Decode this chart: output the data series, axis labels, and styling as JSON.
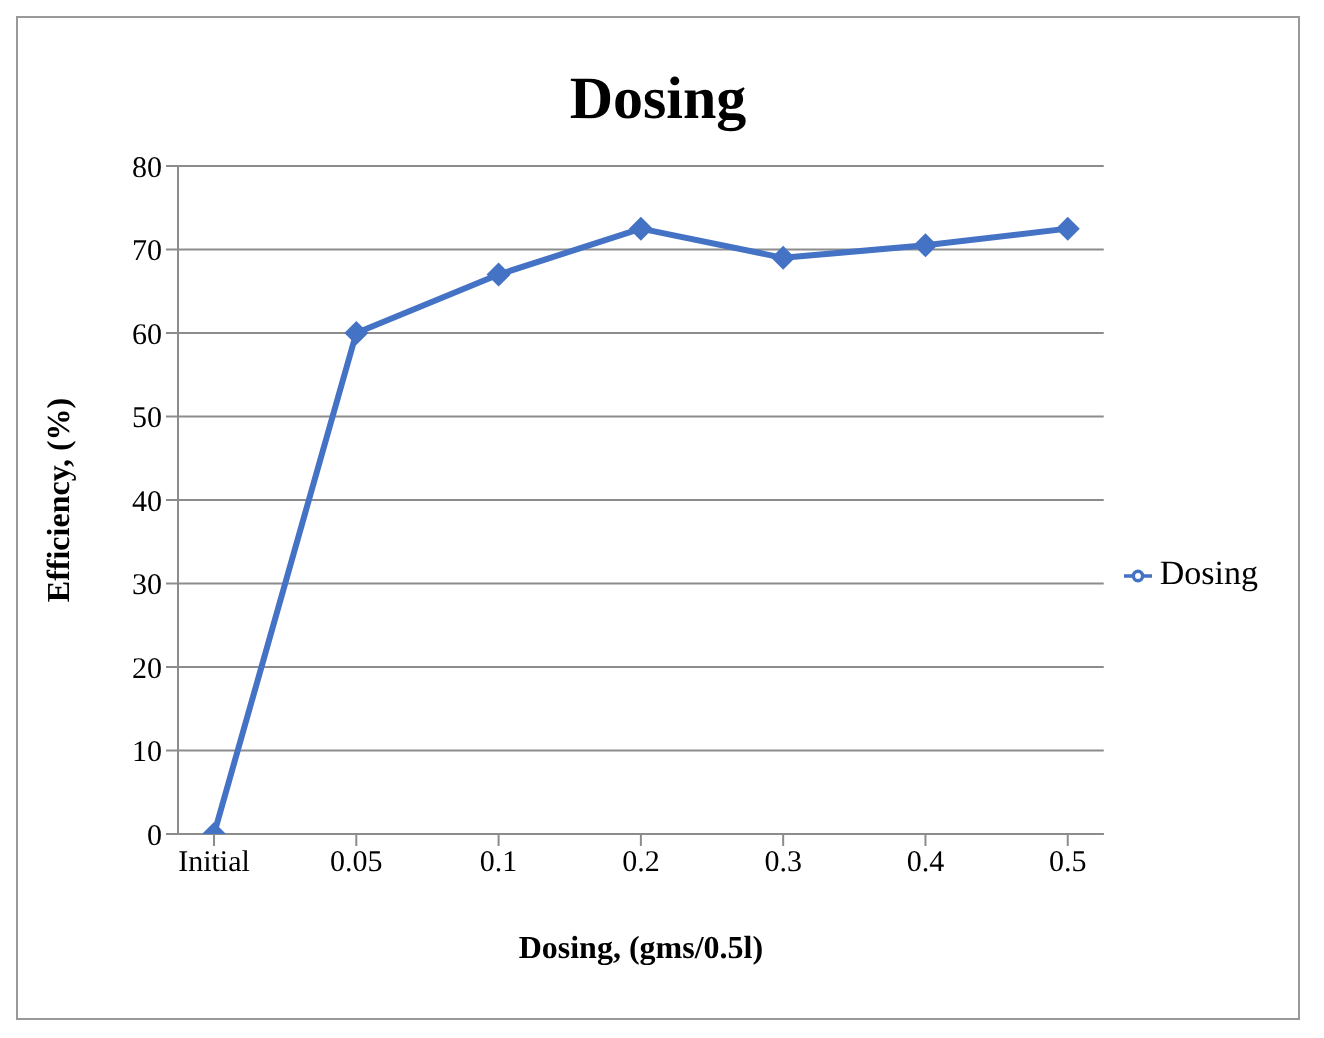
{
  "chart_data": {
    "type": "line",
    "title": "Dosing",
    "xlabel": "Dosing, (gms/0.5l)",
    "ylabel": "Efficiency, (%)",
    "categories": [
      "Initial",
      "0.05",
      "0.1",
      "0.2",
      "0.3",
      "0.4",
      "0.5"
    ],
    "series": [
      {
        "name": "Dosing",
        "color": "#4472c4",
        "values": [
          0,
          60,
          67,
          72.5,
          69,
          70.5,
          72.5
        ]
      }
    ],
    "ylim": [
      0,
      80
    ],
    "yticks": [
      0,
      10,
      20,
      30,
      40,
      50,
      60,
      70,
      80
    ],
    "grid": "y",
    "legend": "right",
    "marker": "diamond"
  }
}
